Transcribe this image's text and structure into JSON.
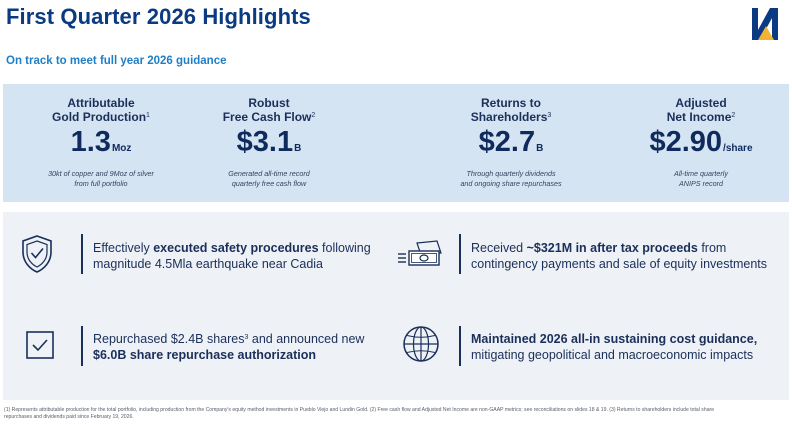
{
  "header": {
    "title": "First Quarter 2026 Highlights",
    "subtitle": "On track to meet full year 2026 guidance",
    "logo_icon": "company-logo-icon",
    "colors": {
      "title": "#0a3a82",
      "subtitle": "#1e7fc7",
      "kpi_band": "#d5e4f2",
      "panel": "#eef1f5",
      "logo_dark": "#0a3a82",
      "logo_accent": "#f2b233"
    }
  },
  "kpis": [
    {
      "title_line1": "Attributable",
      "title_line2": "Gold Production",
      "footnote_ref": "1",
      "value": "1.3",
      "unit": "Moz",
      "note_line1": "30kt of copper and 9Moz of silver",
      "note_line2": "from full portfolio"
    },
    {
      "title_line1": "Robust",
      "title_line2": "Free Cash Flow",
      "footnote_ref": "2",
      "value": "$3.1",
      "unit": "B",
      "note_line1": "Generated all-time record",
      "note_line2": "quarterly free cash flow"
    },
    {
      "title_line1": "Returns to",
      "title_line2": "Shareholders",
      "footnote_ref": "3",
      "value": "$2.7",
      "unit": "B",
      "note_line1": "Through quarterly dividends",
      "note_line2": "and ongoing share repurchases"
    },
    {
      "title_line1": "Adjusted",
      "title_line2": "Net Income",
      "footnote_ref": "2",
      "value": "$2.90",
      "unit": "/share",
      "note_line1": "All-time quarterly",
      "note_line2": "ANIPS record"
    }
  ],
  "highlights": {
    "safety": {
      "icon": "shield-check-icon",
      "pre": "Effectively ",
      "bold": "executed safety procedures",
      "post": " following",
      "line2": "magnitude 4.5Mla earthquake near Cadia"
    },
    "proceeds": {
      "icon": "cash-icon",
      "pre": "Received ",
      "bold": "~$321M in after tax proceeds",
      "post": " from",
      "line2": "contingency payments and sale of equity investments"
    },
    "buyback": {
      "icon": "checkbox-icon",
      "pre": "Repurchased $2.4B shares",
      "ref": "3",
      "post": " and announced new",
      "line2_bold": "$6.0B share repurchase authorization"
    },
    "guidance": {
      "icon": "globe-icon",
      "bold": "Maintained 2026 all-in sustaining cost guidance,",
      "line2": "mitigating geopolitical and macroeconomic impacts"
    }
  },
  "footnote": {
    "line1": "(1) Represents attributable production for the total portfolio, including production from the Company's equity method investments in Pueblo Viejo and Lundin Gold. (2) Free cash flow and Adjusted Net Income are non-GAAP metrics; see reconciliations on slides 18 & 19. (3) Returns to shareholders include total share",
    "line2": "repurchases and dividends paid since February 19, 2026."
  }
}
